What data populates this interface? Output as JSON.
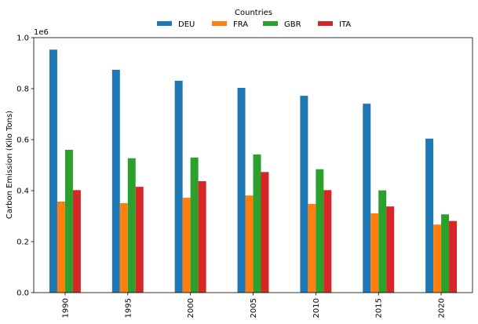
{
  "chart_data": {
    "type": "bar",
    "ylabel": "Carbon Emission (Kilo Tons)",
    "y_scale_label": "1e6",
    "ylim": [
      0,
      1000000
    ],
    "yticks": [
      0,
      200000,
      400000,
      600000,
      800000,
      1000000
    ],
    "ytick_labels": [
      "0.0",
      "0.2",
      "0.4",
      "0.6",
      "0.8",
      "1.0"
    ],
    "categories": [
      "1990",
      "1995",
      "2000",
      "2005",
      "2010",
      "2015",
      "2020"
    ],
    "legend": {
      "title": "Countries",
      "placement": "top-center"
    },
    "series": [
      {
        "name": "DEU",
        "color": "#1f77b4",
        "values": [
          953000,
          874000,
          831000,
          803000,
          772000,
          741000,
          604000
        ]
      },
      {
        "name": "FRA",
        "color": "#ff7f0e",
        "values": [
          357000,
          351000,
          372000,
          381000,
          348000,
          311000,
          267000
        ]
      },
      {
        "name": "GBR",
        "color": "#2ca02c",
        "values": [
          560000,
          527000,
          530000,
          542000,
          484000,
          401000,
          307000
        ]
      },
      {
        "name": "ITA",
        "color": "#d62728",
        "values": [
          402000,
          415000,
          437000,
          473000,
          402000,
          338000,
          281000
        ]
      }
    ]
  }
}
